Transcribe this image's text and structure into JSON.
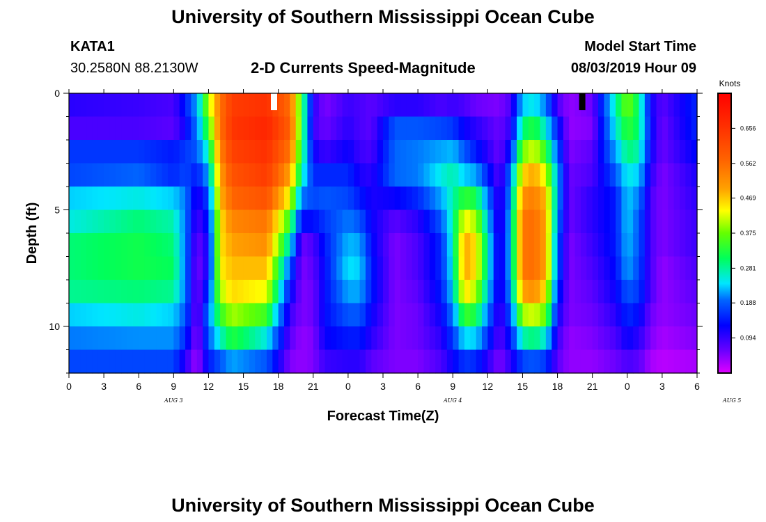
{
  "header": {
    "title": "University of Southern Mississippi Ocean Cube",
    "station_id": "KATA1",
    "station_coords": "30.2580N 88.2130W",
    "plot_title": "2-D Currents Speed-Magnitude",
    "model_start_label": "Model Start Time",
    "model_start_value": "08/03/2019 Hour 09"
  },
  "footer": {
    "title": "University of Southern Mississippi Ocean Cube"
  },
  "chart_data": {
    "type": "heatmap",
    "title": "2-D Currents Speed-Magnitude",
    "xlabel": "Forecast Time(Z)",
    "ylabel": "Depth (ft)",
    "x_tick_labels": [
      "0",
      "3",
      "6",
      "9",
      "12",
      "15",
      "18",
      "21",
      "0",
      "3",
      "6",
      "9",
      "12",
      "15",
      "18",
      "21",
      "0",
      "3",
      "6"
    ],
    "date_labels": [
      {
        "label": "AUG 3",
        "at_hour": 9
      },
      {
        "label": "AUG 4",
        "at_hour": 33
      },
      {
        "label": "AUG 5",
        "at_hour": 57
      }
    ],
    "x_range_hours_from_aug3_00z": [
      0,
      54
    ],
    "y_tick_labels": [
      "0",
      "5",
      "10"
    ],
    "ylim_ft": [
      0,
      12
    ],
    "y_inverted": true,
    "colorbar": {
      "unit": "Knots",
      "tick_labels": [
        "0.656",
        "0.562",
        "0.469",
        "0.375",
        "0.281",
        "0.188",
        "0.094"
      ],
      "range": [
        0.0,
        0.75
      ]
    },
    "depth_rows_ft": [
      0.5,
      1.5,
      2.5,
      3.5,
      4.5,
      5.5,
      6.5,
      7.5,
      8.5,
      9.5,
      10.5,
      11.5
    ],
    "columns_hours_from_aug3_00z": [
      0,
      6,
      9,
      10,
      11,
      12,
      13,
      14,
      17,
      19,
      20,
      21,
      22,
      24,
      25,
      26,
      28,
      30,
      32,
      33,
      34,
      35,
      37,
      38,
      39,
      40,
      41,
      42,
      43,
      45,
      47,
      48,
      49,
      50,
      51,
      54
    ],
    "speed_knots_by_column": [
      [
        0.1,
        0.08,
        0.16,
        0.17,
        0.24,
        0.26,
        0.3,
        0.3,
        0.29,
        0.24,
        0.2,
        0.17
      ],
      [
        0.09,
        0.08,
        0.16,
        0.19,
        0.26,
        0.3,
        0.32,
        0.32,
        0.3,
        0.26,
        0.21,
        0.17
      ],
      [
        0.08,
        0.07,
        0.14,
        0.15,
        0.24,
        0.28,
        0.3,
        0.31,
        0.29,
        0.24,
        0.21,
        0.17
      ],
      [
        0.14,
        0.12,
        0.16,
        0.17,
        0.2,
        0.2,
        0.2,
        0.2,
        0.2,
        0.18,
        0.15,
        0.1
      ],
      [
        0.22,
        0.2,
        0.18,
        0.14,
        0.1,
        0.08,
        0.06,
        0.05,
        0.05,
        0.05,
        0.04,
        0.03
      ],
      [
        0.4,
        0.35,
        0.28,
        0.22,
        0.17,
        0.14,
        0.12,
        0.12,
        0.16,
        0.2,
        0.18,
        0.14
      ],
      [
        0.55,
        0.55,
        0.53,
        0.5,
        0.48,
        0.45,
        0.45,
        0.44,
        0.4,
        0.34,
        0.27,
        0.18
      ],
      [
        0.64,
        0.65,
        0.63,
        0.6,
        0.57,
        0.53,
        0.5,
        0.48,
        0.46,
        0.4,
        0.33,
        0.22
      ],
      [
        0.66,
        0.68,
        0.66,
        0.64,
        0.6,
        0.55,
        0.52,
        0.48,
        0.43,
        0.35,
        0.26,
        0.18
      ],
      [
        0.56,
        0.58,
        0.55,
        0.5,
        0.43,
        0.34,
        0.26,
        0.18,
        0.13,
        0.09,
        0.07,
        0.05
      ],
      [
        0.34,
        0.34,
        0.32,
        0.28,
        0.2,
        0.13,
        0.06,
        0.05,
        0.05,
        0.05,
        0.04,
        0.04
      ],
      [
        0.1,
        0.09,
        0.12,
        0.15,
        0.17,
        0.13,
        0.08,
        0.07,
        0.06,
        0.06,
        0.05,
        0.05
      ],
      [
        0.05,
        0.06,
        0.09,
        0.15,
        0.18,
        0.16,
        0.14,
        0.13,
        0.13,
        0.13,
        0.12,
        0.09
      ],
      [
        0.09,
        0.1,
        0.12,
        0.15,
        0.17,
        0.2,
        0.23,
        0.25,
        0.22,
        0.18,
        0.14,
        0.1
      ],
      [
        0.08,
        0.08,
        0.09,
        0.11,
        0.14,
        0.18,
        0.22,
        0.24,
        0.22,
        0.18,
        0.14,
        0.1
      ],
      [
        0.07,
        0.07,
        0.08,
        0.1,
        0.11,
        0.12,
        0.13,
        0.14,
        0.14,
        0.12,
        0.1,
        0.07
      ],
      [
        0.1,
        0.18,
        0.19,
        0.19,
        0.12,
        0.07,
        0.05,
        0.05,
        0.05,
        0.05,
        0.05,
        0.05
      ],
      [
        0.1,
        0.18,
        0.2,
        0.2,
        0.15,
        0.1,
        0.08,
        0.08,
        0.07,
        0.06,
        0.06,
        0.05
      ],
      [
        0.08,
        0.17,
        0.22,
        0.26,
        0.22,
        0.18,
        0.15,
        0.15,
        0.14,
        0.12,
        0.1,
        0.08
      ],
      [
        0.09,
        0.16,
        0.23,
        0.28,
        0.28,
        0.28,
        0.27,
        0.26,
        0.24,
        0.2,
        0.16,
        0.12
      ],
      [
        0.08,
        0.12,
        0.18,
        0.24,
        0.34,
        0.44,
        0.5,
        0.5,
        0.46,
        0.35,
        0.25,
        0.16
      ],
      [
        0.06,
        0.1,
        0.14,
        0.22,
        0.32,
        0.4,
        0.45,
        0.45,
        0.4,
        0.32,
        0.24,
        0.15
      ],
      [
        0.05,
        0.06,
        0.06,
        0.07,
        0.08,
        0.08,
        0.09,
        0.09,
        0.09,
        0.08,
        0.07,
        0.05
      ],
      [
        0.08,
        0.1,
        0.14,
        0.2,
        0.22,
        0.24,
        0.24,
        0.24,
        0.22,
        0.18,
        0.14,
        0.1
      ],
      [
        0.24,
        0.3,
        0.38,
        0.46,
        0.52,
        0.55,
        0.55,
        0.55,
        0.5,
        0.4,
        0.28,
        0.17
      ],
      [
        0.26,
        0.33,
        0.42,
        0.5,
        0.54,
        0.56,
        0.56,
        0.56,
        0.52,
        0.42,
        0.3,
        0.18
      ],
      [
        0.2,
        0.26,
        0.34,
        0.42,
        0.48,
        0.5,
        0.5,
        0.5,
        0.45,
        0.37,
        0.26,
        0.16
      ],
      [
        0.08,
        0.14,
        0.18,
        0.22,
        0.22,
        0.2,
        0.18,
        0.18,
        0.15,
        0.12,
        0.09,
        0.07
      ],
      [
        0.04,
        0.04,
        0.05,
        0.06,
        0.06,
        0.06,
        0.05,
        0.05,
        0.05,
        0.05,
        0.04,
        0.04
      ],
      [
        0.06,
        0.05,
        0.07,
        0.08,
        0.1,
        0.1,
        0.09,
        0.08,
        0.07,
        0.06,
        0.05,
        0.04
      ],
      [
        0.28,
        0.26,
        0.22,
        0.18,
        0.14,
        0.14,
        0.14,
        0.13,
        0.12,
        0.1,
        0.08,
        0.06
      ],
      [
        0.38,
        0.34,
        0.3,
        0.26,
        0.24,
        0.24,
        0.23,
        0.22,
        0.18,
        0.15,
        0.12,
        0.08
      ],
      [
        0.3,
        0.3,
        0.28,
        0.24,
        0.2,
        0.18,
        0.18,
        0.17,
        0.16,
        0.13,
        0.1,
        0.07
      ],
      [
        0.12,
        0.13,
        0.12,
        0.1,
        0.08,
        0.08,
        0.08,
        0.08,
        0.08,
        0.06,
        0.05,
        0.03
      ],
      [
        0.07,
        0.06,
        0.06,
        0.05,
        0.05,
        0.05,
        0.05,
        0.04,
        0.04,
        0.04,
        0.03,
        0.02
      ],
      [
        0.15,
        0.15,
        0.13,
        0.11,
        0.1,
        0.09,
        0.09,
        0.08,
        0.07,
        0.06,
        0.05,
        0.03
      ]
    ],
    "markers": [
      {
        "hour": 17.6,
        "depth_ft": 0.3,
        "color": "#ffffff"
      },
      {
        "hour": 44.1,
        "depth_ft": 0.3,
        "color": "#000000"
      }
    ]
  }
}
